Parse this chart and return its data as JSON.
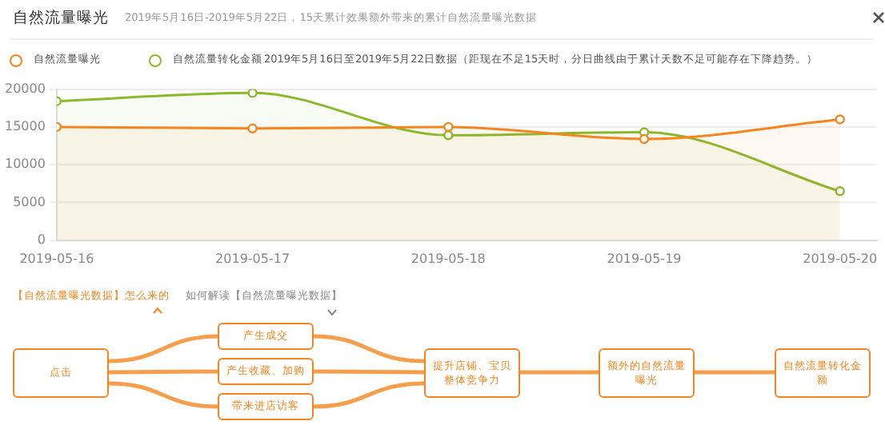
{
  "chart_data": [
    {
      "type": "area",
      "title": "自然流量曝光",
      "subtitle": "2019年5月16日-2019年5月22日，15天累计效果额外带来的累计自然流量曝光数据",
      "annotations": [
        "2019年5月16日至2019年5月22日数据（距现在不足15天时，分日曲线由于累计天数不足可能存在下降趋势。）"
      ],
      "x": [
        "2019-05-16",
        "2019-05-17",
        "2019-05-18",
        "2019-05-19",
        "2019-05-20"
      ],
      "series": [
        {
          "name": "自然流量曝光",
          "color": "#f5861f",
          "values": [
            15000,
            14800,
            15000,
            13400,
            16000
          ]
        },
        {
          "name": "自然流量转化金额",
          "color": "#8cb82b",
          "values": [
            18400,
            19500,
            13900,
            14300,
            6500
          ]
        }
      ],
      "xlim": [
        "2019-05-16",
        "2019-05-20T04:30"
      ],
      "xticks": [
        "2019-05-16",
        "2019-05-17",
        "2019-05-18",
        "2019-05-19",
        "2019-05-20"
      ],
      "ylim": [
        0,
        20000
      ],
      "yticks": [
        0,
        5000,
        10000,
        15000,
        20000
      ],
      "grid": "y",
      "legend": "top left",
      "marker": "circle",
      "line_style": "solid"
    },
    {
      "type": "other",
      "annotations": [
        "【自然流量曝光数据】怎么来的",
        "如何解读【自然流量曝光数据】",
        "点击",
        "产生成交",
        "产生收藏、加购",
        "带来进店访客",
        "提升店铺、宝贝整体竞争力",
        "额外的自然流量曝光",
        "自然流量转化金额"
      ]
    }
  ]
}
